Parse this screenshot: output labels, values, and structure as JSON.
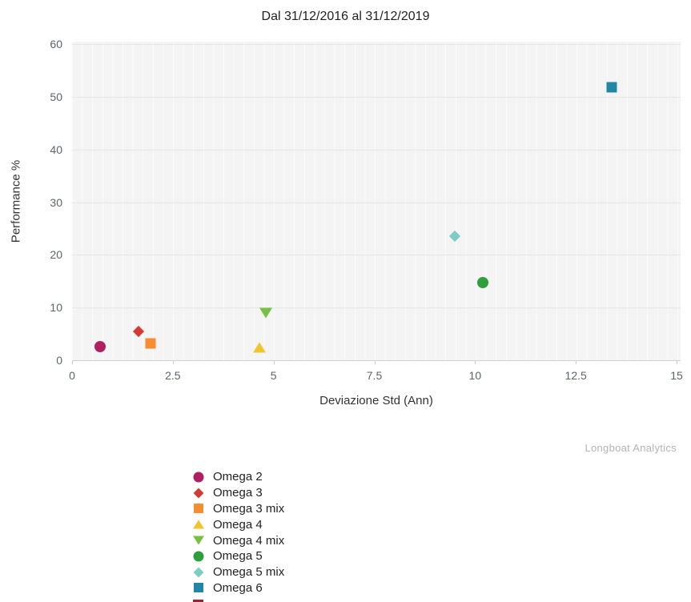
{
  "title": "Dal 31/12/2016 al 31/12/2019",
  "watermark": "Longboat Analytics",
  "chart_data": {
    "type": "scatter",
    "title": "Dal 31/12/2016 al 31/12/2019",
    "xlabel": "Deviazione Std (Ann)",
    "ylabel": "Performance %",
    "xlim": [
      0,
      15
    ],
    "ylim": [
      0,
      60
    ],
    "x_ticks": [
      0,
      2.5,
      5,
      7.5,
      10,
      12.5,
      15
    ],
    "y_ticks": [
      0,
      10,
      20,
      30,
      40,
      50,
      60
    ],
    "grid": true,
    "legend_position": "bottom-left",
    "plot_background": "#f4f4f4",
    "series": [
      {
        "name": "Omega 2",
        "marker": "circle",
        "color": "#b01f62",
        "x": 0.7,
        "y": 2.6
      },
      {
        "name": "Omega 3",
        "marker": "diamond",
        "color": "#d43a32",
        "x": 1.65,
        "y": 5.4
      },
      {
        "name": "Omega 3 mix",
        "marker": "square",
        "color": "#f78d31",
        "x": 1.95,
        "y": 3.2
      },
      {
        "name": "Omega 4",
        "marker": "triangle-up",
        "color": "#f2c430",
        "x": 4.65,
        "y": 2.4
      },
      {
        "name": "Omega 4 mix",
        "marker": "triangle-down",
        "color": "#76c143",
        "x": 4.8,
        "y": 9.0
      },
      {
        "name": "Omega 5",
        "marker": "circle",
        "color": "#2e9e3e",
        "x": 10.2,
        "y": 14.7
      },
      {
        "name": "Omega 5 mix",
        "marker": "diamond",
        "color": "#7fccc5",
        "x": 9.5,
        "y": 23.5
      },
      {
        "name": "Omega 6",
        "marker": "square",
        "color": "#2287a6",
        "x": 13.4,
        "y": 51.8
      }
    ],
    "partial_next_legend_marker_color": "#9c2131"
  }
}
